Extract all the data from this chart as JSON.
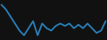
{
  "x": [
    0,
    1,
    2,
    3,
    4,
    5,
    6,
    7,
    8,
    9,
    10,
    11,
    12,
    13,
    14,
    15,
    16,
    17,
    18,
    19,
    20,
    21,
    22,
    23
  ],
  "y": [
    42,
    38,
    32,
    26,
    20,
    16,
    22,
    28,
    16,
    26,
    22,
    20,
    24,
    26,
    24,
    26,
    22,
    25,
    22,
    26,
    22,
    18,
    20,
    28
  ],
  "line_color": "#2980b9",
  "linewidth": 1.3,
  "background_color": "#111111",
  "ylim": [
    12,
    46
  ],
  "xlim": [
    -0.3,
    23.3
  ]
}
